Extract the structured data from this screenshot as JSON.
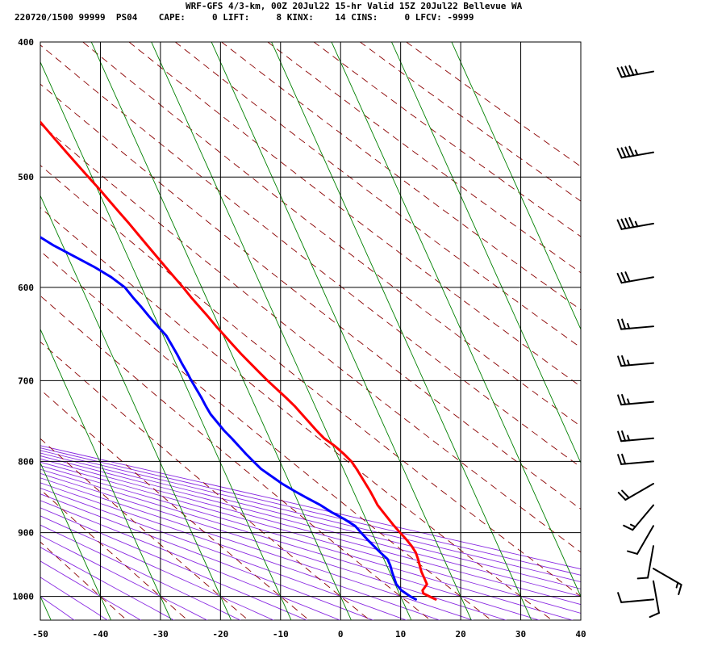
{
  "header": {
    "line1": "WRF-GFS 4/3-km, 00Z 20Jul22 15-hr Valid 15Z 20Jul22 Bellevue WA",
    "line2": "220720/1500 99999  PS04    CAPE:     0 LIFT:     8 KINX:    14 CINS:     0 LFCV: -9999"
  },
  "chart_data": {
    "type": "line",
    "subtype": "skew-t log-p sounding",
    "title": "WRF-GFS 4/3-km, 00Z 20Jul22 15-hr Valid 15Z 20Jul22 Bellevue WA",
    "xlabel": "",
    "ylabel": "",
    "xlim": [
      -50,
      40
    ],
    "ylim": [
      1040,
      400
    ],
    "yscale": "log",
    "grid": true,
    "x_ticks": [
      -50,
      -40,
      -30,
      -20,
      -10,
      0,
      10,
      20,
      30,
      40
    ],
    "y_ticks": [
      400,
      500,
      600,
      700,
      800,
      900,
      1000
    ],
    "colors": {
      "temperature": "#ff0000",
      "dewpoint": "#0000ff",
      "isotherm": "#008000",
      "dry_adiabat": "#8b0000",
      "moist_adiabat": "#8a2be2",
      "grid": "#000000"
    },
    "series": [
      {
        "key": "temperature",
        "p": [
          1005,
          1000,
          995,
          990,
          980,
          970,
          960,
          950,
          940,
          930,
          920,
          910,
          900,
          890,
          880,
          870,
          860,
          850,
          840,
          830,
          820,
          810,
          800,
          790,
          780,
          770,
          760,
          750,
          740,
          730,
          720,
          710,
          700,
          690,
          680,
          670,
          660,
          650,
          640,
          630,
          620,
          610,
          600,
          590,
          580,
          570,
          560,
          550,
          540,
          530,
          520,
          510,
          500,
          490,
          480,
          470,
          460,
          450,
          440,
          430,
          420,
          415
        ],
        "x": [
          15.6,
          14.8,
          14.0,
          14.1,
          15.3,
          15.3,
          15.3,
          15.5,
          15.7,
          15.8,
          15.6,
          15.2,
          14.7,
          14.2,
          13.8,
          13.4,
          13.0,
          12.9,
          12.8,
          12.6,
          12.4,
          12.2,
          11.9,
          11.2,
          10.3,
          9.1,
          8.4,
          7.8,
          7.2,
          6.6,
          5.8,
          4.9,
          4.0,
          3.2,
          2.4,
          1.6,
          0.9,
          0.2,
          -0.5,
          -1.1,
          -1.8,
          -2.5,
          -3.1,
          -3.8,
          -4.5,
          -5.2,
          -5.9,
          -6.6,
          -7.3,
          -8.1,
          -8.9,
          -9.7,
          -10.6,
          -11.5,
          -12.4,
          -13.3,
          -14.2,
          -15.1,
          -16.1,
          -17.2,
          -18.5,
          -19.0
        ]
      },
      {
        "key": "dewpoint",
        "p": [
          1005,
          1000,
          990,
          980,
          970,
          960,
          950,
          940,
          930,
          920,
          910,
          900,
          890,
          880,
          870,
          860,
          850,
          840,
          830,
          820,
          810,
          800,
          790,
          780,
          770,
          760,
          750,
          740,
          730,
          720,
          710,
          700,
          690,
          680,
          670,
          660,
          650,
          640,
          630,
          620,
          610,
          600,
          590,
          580,
          570,
          560,
          550,
          540,
          530,
          520,
          510,
          500,
          490,
          480,
          470,
          460,
          450,
          440,
          430,
          420,
          415
        ],
        "x": [
          12.3,
          11.6,
          10.6,
          10.2,
          10.3,
          10.4,
          10.6,
          10.6,
          9.9,
          9.3,
          8.7,
          8.2,
          7.7,
          6.4,
          4.8,
          3.5,
          1.8,
          0.2,
          -1.3,
          -2.5,
          -3.7,
          -4.4,
          -5.1,
          -5.7,
          -6.3,
          -7.0,
          -7.5,
          -8.0,
          -8.2,
          -8.3,
          -8.5,
          -8.7,
          -8.8,
          -9.0,
          -9.1,
          -9.3,
          -9.5,
          -10.2,
          -10.9,
          -11.5,
          -12.2,
          -12.8,
          -14.3,
          -16.4,
          -18.9,
          -21.5,
          -23.6,
          -25.4,
          -26.8,
          -28.2,
          -29.6,
          -31.0,
          -32.5,
          -34.0,
          -35.6,
          -37.1,
          -37.7,
          -38.3,
          -38.9,
          -39.5,
          -39.8
        ]
      }
    ],
    "wind_barbs": [
      {
        "p": 420,
        "dir": 260,
        "speed": 45
      },
      {
        "p": 480,
        "dir": 260,
        "speed": 45
      },
      {
        "p": 540,
        "dir": 260,
        "speed": 45
      },
      {
        "p": 590,
        "dir": 260,
        "speed": 30
      },
      {
        "p": 640,
        "dir": 265,
        "speed": 25
      },
      {
        "p": 680,
        "dir": 265,
        "speed": 25
      },
      {
        "p": 725,
        "dir": 265,
        "speed": 25
      },
      {
        "p": 770,
        "dir": 265,
        "speed": 25
      },
      {
        "p": 800,
        "dir": 265,
        "speed": 20
      },
      {
        "p": 830,
        "dir": 240,
        "speed": 20
      },
      {
        "p": 860,
        "dir": 220,
        "speed": 15
      },
      {
        "p": 890,
        "dir": 210,
        "speed": 10
      },
      {
        "p": 920,
        "dir": 190,
        "speed": 10
      },
      {
        "p": 955,
        "dir": 120,
        "speed": 15
      },
      {
        "p": 975,
        "dir": 170,
        "speed": 10
      },
      {
        "p": 1005,
        "dir": 265,
        "speed": 10
      }
    ]
  }
}
